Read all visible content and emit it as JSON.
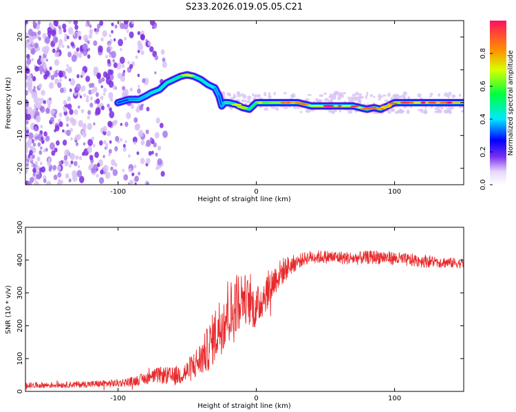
{
  "title": "S233.2026.019.05.05.C21",
  "colors": {
    "snr_line": "#e8292b",
    "trace": "#ff1010",
    "noise_light": "#d7c2f4",
    "noise_mid": "#a779ea",
    "noise_dark": "#7d2ee0"
  },
  "chart_data": [
    {
      "type": "heatmap",
      "title": "S233.2026.019.05.05.C21",
      "xlabel": "Height of straight line (km)",
      "ylabel": "Frequency (Hz)",
      "xlim": [
        -167,
        150
      ],
      "ylim": [
        -25,
        25
      ],
      "xticks": [
        -100,
        0,
        100
      ],
      "xtick_labels": [
        "-100",
        "0",
        "100"
      ],
      "yticks": [
        -20,
        -10,
        0,
        10,
        20
      ],
      "ytick_labels": [
        "-20",
        "-10",
        "0",
        "10",
        "20"
      ],
      "colorbar": {
        "label": "Normalized spectral amplitude",
        "range": [
          0,
          1
        ],
        "ticks": [
          0.0,
          0.2,
          0.4,
          0.6,
          0.8
        ],
        "tick_labels": [
          "0.0",
          "0.2",
          "0.4",
          "0.6",
          "0.8"
        ]
      },
      "ridge": {
        "x": [
          -100,
          -92,
          -85,
          -80,
          -76,
          -70,
          -65,
          -60,
          -55,
          -50,
          -45,
          -40,
          -35,
          -30,
          -27,
          -25,
          -23,
          -20,
          -15,
          -10,
          -5,
          0,
          10,
          20,
          30,
          40,
          50,
          60,
          70,
          80,
          85,
          90,
          95,
          100,
          110,
          120,
          130,
          140,
          150
        ],
        "freq": [
          0,
          1,
          1,
          2,
          3,
          4,
          6,
          7,
          8,
          8.5,
          8,
          7,
          5.5,
          4.5,
          2,
          -1,
          0,
          0,
          -0.5,
          -1.5,
          -2,
          0,
          0,
          0,
          0,
          -1,
          -1,
          -1,
          -1,
          -2,
          -1.5,
          -2,
          -1,
          0,
          0,
          0,
          0,
          0,
          0
        ],
        "amplitude": [
          0.3,
          0.35,
          0.45,
          0.4,
          0.5,
          0.5,
          0.55,
          0.55,
          0.6,
          0.7,
          0.6,
          0.55,
          0.5,
          0.45,
          0.35,
          0.35,
          0.5,
          0.55,
          0.6,
          0.65,
          0.6,
          0.7,
          0.75,
          0.8,
          0.8,
          0.85,
          0.9,
          0.9,
          0.85,
          0.85,
          0.8,
          0.8,
          0.75,
          0.8,
          0.85,
          0.9,
          0.9,
          0.9,
          0.95
        ]
      },
      "noise_region_x": [
        -167,
        -65
      ]
    },
    {
      "type": "line",
      "xlabel": "Height of straight line (km)",
      "ylabel": "SNR (10 * v/v)",
      "xlim": [
        -167,
        150
      ],
      "ylim": [
        0,
        500
      ],
      "xticks": [
        -100,
        0,
        100
      ],
      "xtick_labels": [
        "-100",
        "0",
        "100"
      ],
      "yticks": [
        0,
        100,
        200,
        300,
        400,
        500
      ],
      "ytick_labels": [
        "0",
        "100",
        "200",
        "300",
        "400",
        "500"
      ],
      "series": [
        {
          "name": "SNR",
          "x": [
            -167,
            -140,
            -120,
            -100,
            -90,
            -80,
            -70,
            -60,
            -50,
            -45,
            -40,
            -35,
            -30,
            -25,
            -20,
            -17,
            -15,
            -10,
            -5,
            0,
            5,
            10,
            15,
            20,
            25,
            30,
            35,
            40,
            50,
            60,
            70,
            80,
            90,
            100,
            110,
            120,
            130,
            140,
            150
          ],
          "y": [
            18,
            20,
            22,
            25,
            30,
            40,
            50,
            45,
            60,
            80,
            100,
            130,
            170,
            210,
            250,
            230,
            270,
            290,
            270,
            250,
            290,
            320,
            350,
            370,
            385,
            395,
            405,
            410,
            410,
            408,
            405,
            408,
            410,
            405,
            400,
            398,
            395,
            392,
            390
          ],
          "spread": [
            9,
            9,
            10,
            12,
            14,
            18,
            25,
            28,
            35,
            45,
            55,
            70,
            85,
            95,
            110,
            100,
            95,
            80,
            70,
            65,
            60,
            55,
            45,
            40,
            30,
            22,
            20,
            20,
            20,
            20,
            20,
            20,
            22,
            20,
            20,
            20,
            18,
            16,
            15
          ]
        }
      ]
    }
  ]
}
